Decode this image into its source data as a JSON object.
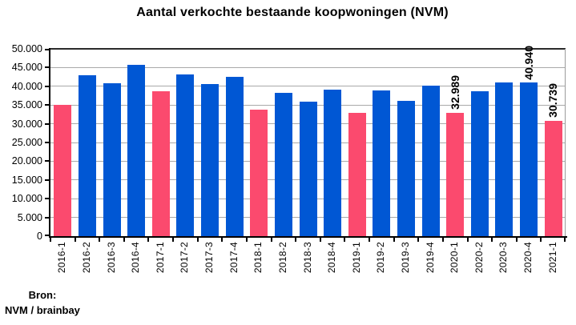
{
  "title": "Aantal verkochte bestaande koopwoningen (NVM)",
  "source": {
    "line1": "Bron:",
    "line2": "NVM / brainbay"
  },
  "chart_data": {
    "type": "bar",
    "title": "Aantal verkochte bestaande koopwoningen (NVM)",
    "xlabel": "",
    "ylabel": "",
    "categories": [
      "2016-1",
      "2016-2",
      "2016-3",
      "2016-4",
      "2017-1",
      "2017-2",
      "2017-3",
      "2017-4",
      "2018-1",
      "2018-2",
      "2018-3",
      "2018-4",
      "2019-1",
      "2019-2",
      "2019-3",
      "2019-4",
      "2020-1",
      "2020-2",
      "2020-3",
      "2020-4",
      "2021-1"
    ],
    "values": [
      35000,
      43000,
      40800,
      45700,
      38700,
      43100,
      40500,
      42500,
      33800,
      38300,
      36000,
      39100,
      33000,
      38900,
      36200,
      40100,
      32989,
      38600,
      41100,
      40940,
      30739
    ],
    "data_labels": [
      "",
      "",
      "",
      "",
      "",
      "",
      "",
      "",
      "",
      "",
      "",
      "",
      "",
      "",
      "",
      "",
      "32.989",
      "",
      "",
      "40.940",
      "30.739"
    ],
    "highlight_indices": [
      0,
      4,
      8,
      12,
      16,
      20
    ],
    "ylim": [
      0,
      50000
    ],
    "ytick_step": 5000,
    "ytick_labels": [
      "0",
      "5.000",
      "10.000",
      "15.000",
      "20.000",
      "25.000",
      "30.000",
      "35.000",
      "40.000",
      "45.000",
      "50.000"
    ],
    "grid": "horizontal",
    "legend": "none",
    "colors": {
      "bar": "#0057D4",
      "bar_highlight": "#FB4A6E",
      "gridline": "#A9A9A9",
      "axis": "#000000",
      "plot_border": "#9C9C9C"
    }
  }
}
